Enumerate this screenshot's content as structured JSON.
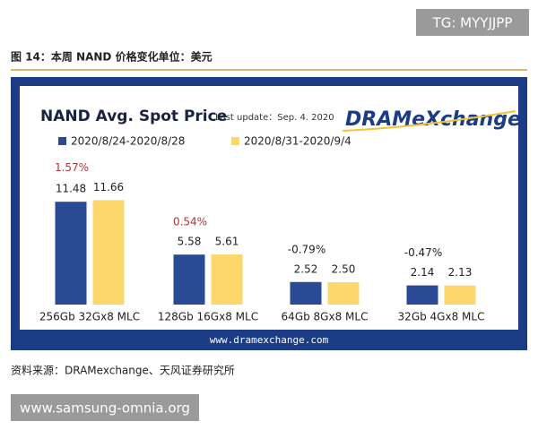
{
  "watermark_top": "TG: MYYJJPP",
  "caption": "图 14：本周 NAND 价格变化单位：美元",
  "chart_data": {
    "type": "bar",
    "title": "NAND Avg. Spot Price",
    "subtitle": "Last update：Sep. 4. 2020",
    "logo": "DRAMeXchange",
    "categories": [
      "256Gb 32Gx8 MLC",
      "128Gb 16Gx8 MLC",
      "64Gb 8Gx8 MLC",
      "32Gb 4Gx8 MLC"
    ],
    "series": [
      {
        "name": "2020/8/24-2020/8/28",
        "color": "#2b4a96",
        "values": [
          11.48,
          5.58,
          2.52,
          2.14
        ],
        "value_labels": [
          "11.48",
          "5.58",
          "2.52",
          "2.14"
        ]
      },
      {
        "name": "2020/8/31-2020/9/4",
        "color": "#fcd86c",
        "values": [
          11.66,
          5.61,
          2.5,
          2.13
        ],
        "value_labels": [
          "11.66",
          "5.61",
          "2.50",
          "2.13"
        ]
      }
    ],
    "changes": {
      "values": [
        1.57,
        0.54,
        -0.79,
        -0.47
      ],
      "value_labels": [
        "1.57%",
        "0.54%",
        "-0.79%",
        "-0.47%"
      ]
    },
    "footer": "www.dramexchange.com"
  },
  "source": "资料来源：DRAMexchange、天风证券研究所",
  "watermark_bottom": "www.samsung-omnia.org"
}
